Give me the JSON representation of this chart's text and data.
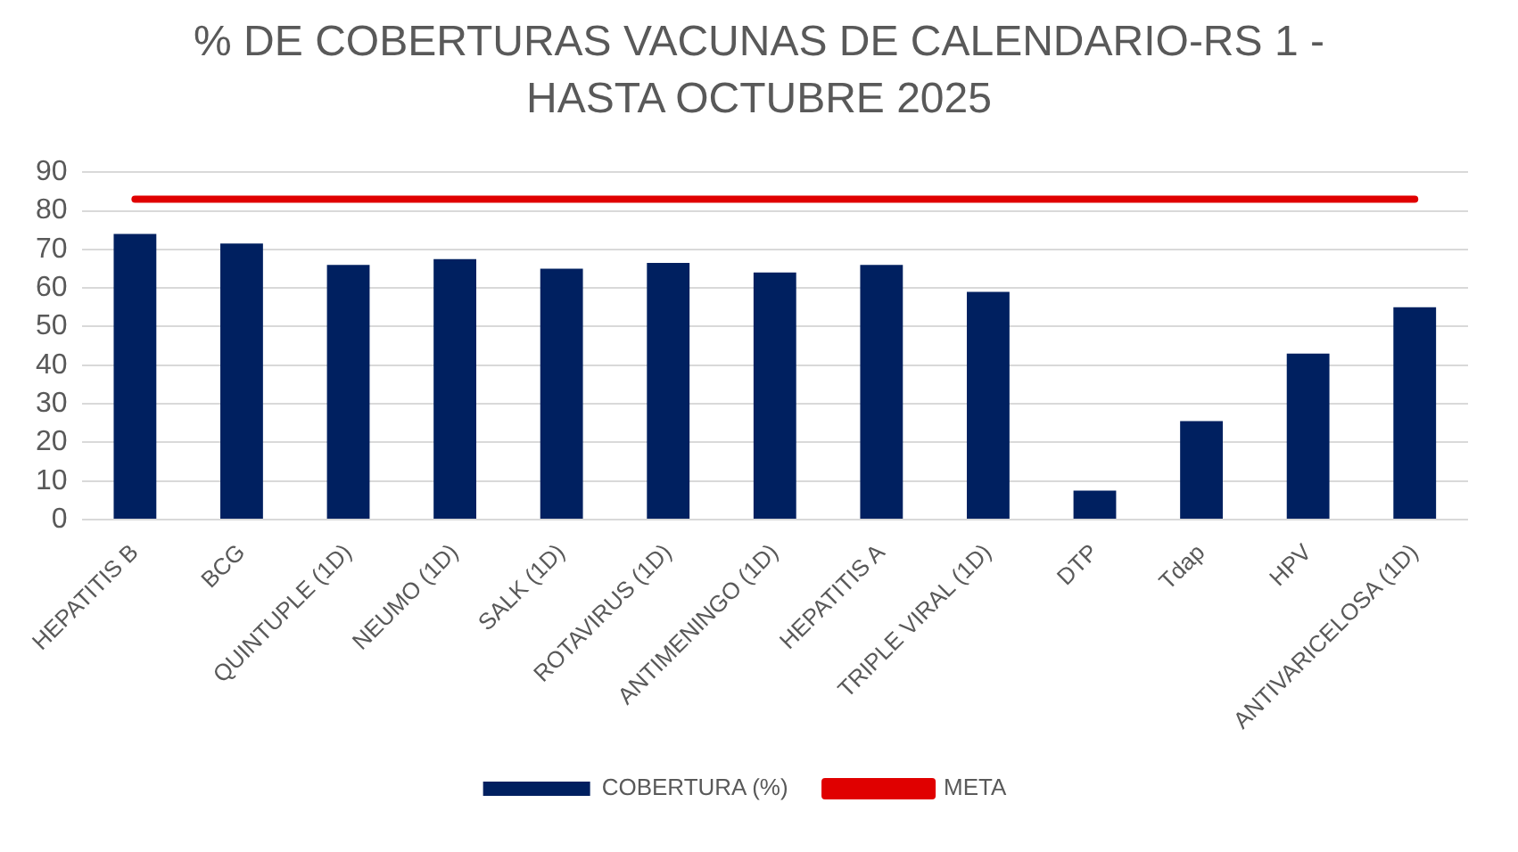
{
  "chart_data": {
    "type": "bar",
    "title": "% DE COBERTURAS VACUNAS DE CALENDARIO-RS 1 - HASTA OCTUBRE 2025",
    "categories": [
      "HEPATITIS B",
      "BCG",
      "QUINTUPLE (1D)",
      "NEUMO (1D)",
      "SALK (1D)",
      "ROTAVIRUS (1D)",
      "ANTIMENINGO (1D)",
      "HEPATITIS A",
      "TRIPLE VIRAL (1D)",
      "DTP",
      "Tdap",
      "HPV",
      "ANTIVARICELOSA (1D)"
    ],
    "series": [
      {
        "name": "COBERTURA (%)",
        "color": "#002060",
        "values": [
          74,
          71.5,
          66,
          67.5,
          65,
          66.5,
          64,
          66,
          59,
          7.5,
          25.5,
          43,
          55
        ]
      },
      {
        "name": "META",
        "type": "line",
        "color": "#e00000",
        "line_style": "solid",
        "marker": "none",
        "values": [
          83,
          83,
          83,
          83,
          83,
          83,
          83,
          83,
          83,
          83,
          83,
          83,
          83
        ]
      }
    ],
    "ylim": [
      0,
      90
    ],
    "yticks": [
      0,
      10,
      20,
      30,
      40,
      50,
      60,
      70,
      80,
      90
    ],
    "grid": "y",
    "legend": "bottom"
  }
}
